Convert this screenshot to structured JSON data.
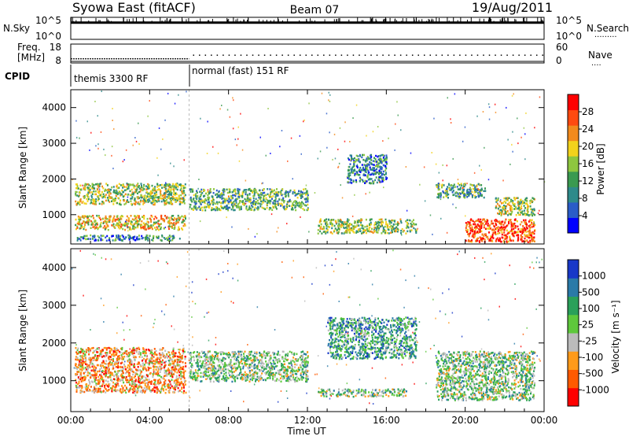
{
  "header": {
    "station": "Syowa East (fitACF)",
    "beam": "Beam 07",
    "date": "19/Aug/2011"
  },
  "noise_panel": {
    "left_label": "N.Sky",
    "right_label": "N.Search",
    "left_ticks": [
      "10^5",
      "10^0"
    ],
    "right_ticks": [
      "10^5",
      "10^0"
    ]
  },
  "freq_panel": {
    "left_label_1": "Freq.",
    "left_label_2": "[MHz]",
    "right_label": "Nave",
    "left_ticks": [
      "18",
      "8"
    ],
    "right_ticks": [
      "60",
      "0"
    ]
  },
  "cpid_panel": {
    "label": "CPID",
    "segments": [
      {
        "text": "themis 3300 RF",
        "start": "00:00",
        "end": "06:00"
      },
      {
        "text": "normal (fast) 151 RF",
        "start": "06:00",
        "end": "24:00"
      }
    ]
  },
  "xaxis": {
    "title": "Time UT",
    "tick_labels": [
      "00:00",
      "04:00",
      "08:00",
      "12:00",
      "16:00",
      "20:00",
      "00:00"
    ],
    "tick_hours": [
      0,
      4,
      8,
      12,
      16,
      20,
      24
    ]
  },
  "power_panel": {
    "ylabel": "Slant Range [km]",
    "yticks": [
      "1000",
      "2000",
      "3000",
      "4000"
    ],
    "colorbar_label": "Power [dB]",
    "colorbar_ticks": [
      "4",
      "8",
      "12",
      "16",
      "20",
      "24",
      "28"
    ]
  },
  "velocity_panel": {
    "ylabel": "Slant Range [km]",
    "yticks": [
      "1000",
      "2000",
      "3000",
      "4000"
    ],
    "colorbar_label": "Velocity [m s⁻¹]",
    "colorbar_ticks": [
      "1000",
      "500",
      "100",
      "25",
      "-25",
      "-100",
      "-500",
      "-1000"
    ]
  },
  "chart_data": [
    {
      "type": "line",
      "name": "noise",
      "x": [
        0,
        2,
        4,
        6,
        8,
        12,
        16,
        20,
        24
      ],
      "values": [
        3.8,
        3.8,
        3.8,
        3.8,
        3.8,
        3.8,
        3.8,
        3.8,
        3.8
      ],
      "ylim": [
        0,
        5
      ]
    },
    {
      "type": "scatter",
      "name": "frequency",
      "x": [
        0,
        1,
        2,
        3,
        4,
        5,
        6,
        6.1,
        8,
        10,
        12,
        14,
        16,
        18,
        20,
        22,
        24
      ],
      "values": [
        10.2,
        10.2,
        10.2,
        10.2,
        10.2,
        10.2,
        10.2,
        12.0,
        12.0,
        12.0,
        12.0,
        12.0,
        12.0,
        12.0,
        12.0,
        12.0,
        12.0
      ],
      "ylim": [
        8,
        18
      ]
    },
    {
      "type": "heatmap",
      "name": "power",
      "xlim": [
        0,
        24
      ],
      "ylim": [
        180,
        4500
      ],
      "color_scale": {
        "min": 0,
        "max": 30,
        "colors": [
          "#0000ff",
          "#2a5cc8",
          "#2e8a8a",
          "#3a9a50",
          "#8ec63f",
          "#f2d21c",
          "#f28a1c",
          "#ff4a10",
          "#ff0000"
        ]
      },
      "regions": [
        {
          "t0": 0.2,
          "t1": 5.8,
          "r0": 1300,
          "r1": 1900,
          "value": 14
        },
        {
          "t0": 0.2,
          "t1": 5.8,
          "r0": 600,
          "r1": 1000,
          "value": 18
        },
        {
          "t0": 0.2,
          "t1": 5.5,
          "r0": 300,
          "r1": 450,
          "value": 6
        },
        {
          "t0": 6.0,
          "t1": 12.0,
          "r0": 1150,
          "r1": 1750,
          "value": 12
        },
        {
          "t0": 12.5,
          "t1": 17.5,
          "r0": 500,
          "r1": 900,
          "value": 16
        },
        {
          "t0": 14.0,
          "t1": 16.0,
          "r0": 1900,
          "r1": 2700,
          "value": 9
        },
        {
          "t0": 18.5,
          "t1": 21.0,
          "r0": 1500,
          "r1": 1900,
          "value": 10
        },
        {
          "t0": 20.0,
          "t1": 23.5,
          "r0": 250,
          "r1": 900,
          "value": 27
        },
        {
          "t0": 21.5,
          "t1": 23.5,
          "r0": 1000,
          "r1": 1500,
          "value": 14
        }
      ]
    },
    {
      "type": "heatmap",
      "name": "velocity",
      "xlim": [
        0,
        24
      ],
      "ylim": [
        180,
        4500
      ],
      "color_scale": {
        "min": -1000,
        "max": 1000,
        "colors": [
          "#ff0000",
          "#ff5a00",
          "#ff9a1a",
          "#bbbbbb",
          "#5ec83c",
          "#2aa05a",
          "#2a7aa8",
          "#1838c8"
        ]
      },
      "regions": [
        {
          "t0": 0.2,
          "t1": 5.8,
          "r0": 700,
          "r1": 1900,
          "value": -300
        },
        {
          "t0": 6.0,
          "t1": 12.0,
          "r0": 1000,
          "r1": 1800,
          "value": 0
        },
        {
          "t0": 12.5,
          "t1": 17.0,
          "r0": 600,
          "r1": 800,
          "value": 0
        },
        {
          "t0": 13.0,
          "t1": 17.5,
          "r0": 1600,
          "r1": 2700,
          "value": 300
        },
        {
          "t0": 18.5,
          "t1": 23.5,
          "r0": 500,
          "r1": 1800,
          "value": 80
        }
      ]
    }
  ]
}
